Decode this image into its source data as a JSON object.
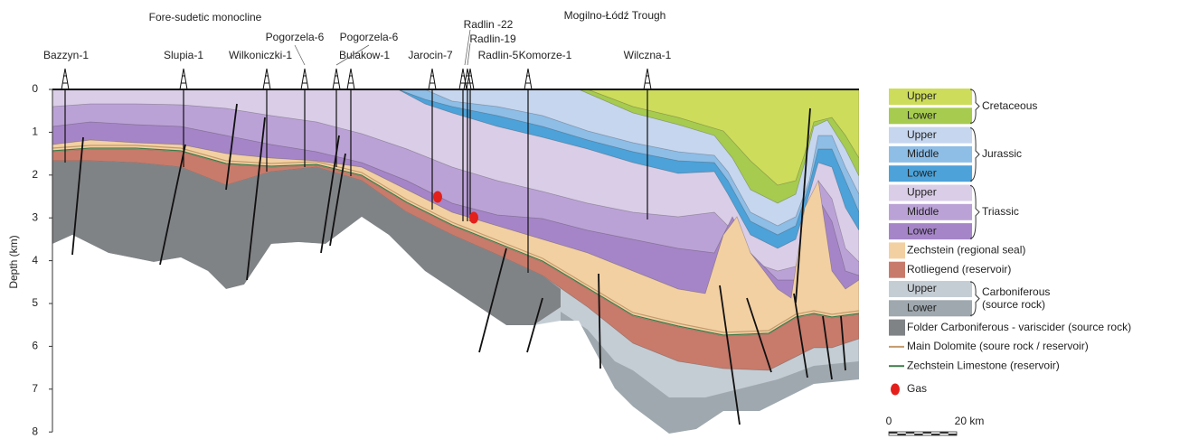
{
  "regions": [
    "Fore-sudetic monocline",
    "Mogilno-Łódź Trough"
  ],
  "wells": [
    "Bazzyn-1",
    "Slupia-1",
    "Wilkoniczki-1",
    "Pogorzela-6",
    "Pogorzela-6",
    "Bulakow-1",
    "Jarocin-7",
    "Radlin -22",
    "Radlin-19",
    "Radlin-5",
    "Komorze-1",
    "Wilczna-1"
  ],
  "depth_axis": {
    "label": "Depth (km)",
    "ticks": [
      0,
      1,
      2,
      3,
      4,
      5,
      6,
      7,
      8
    ]
  },
  "legend": [
    {
      "group": "Cretaceous",
      "items": [
        {
          "label": "Upper",
          "color": "#cddc5a"
        },
        {
          "label": "Lower",
          "color": "#a6cb4f"
        }
      ]
    },
    {
      "group": "Jurassic",
      "items": [
        {
          "label": "Upper",
          "color": "#c6d6ee"
        },
        {
          "label": "Middle",
          "color": "#8ebde6"
        },
        {
          "label": "Lower",
          "color": "#4ca2d9"
        }
      ]
    },
    {
      "group": "Triassic",
      "items": [
        {
          "label": "Upper",
          "color": "#dacde7"
        },
        {
          "label": "Middle",
          "color": "#bba2d6"
        },
        {
          "label": "Lower",
          "color": "#a585c7"
        }
      ]
    },
    {
      "items": [
        {
          "label": "Zechstein (regional seal)",
          "color": "#f3d0a2"
        }
      ]
    },
    {
      "items": [
        {
          "label": "Rotliegend (reservoir)",
          "color": "#c87b6b"
        }
      ]
    },
    {
      "group": "Carboniferous",
      "group_note": "(source rock)",
      "items": [
        {
          "label": "Upper",
          "color": "#c5cdd4"
        },
        {
          "label": "Lower",
          "color": "#9ea8ae"
        }
      ]
    },
    {
      "items": [
        {
          "label": "Folder Carboniferous - variscider (source rock)",
          "color": "#808386"
        }
      ]
    },
    {
      "items": [
        {
          "label": "Main Dolomite (soure rock / reservoir)",
          "color": "#c49a6c",
          "style": "line"
        }
      ]
    },
    {
      "items": [
        {
          "label": "Zechstein Limestone (reservoir)",
          "color": "#3e7a4a",
          "style": "line"
        }
      ]
    },
    {
      "items": [
        {
          "label": "Gas",
          "color": "#e3201b",
          "style": "dot"
        }
      ]
    }
  ],
  "scale_bar": [
    "0",
    "20 km"
  ]
}
